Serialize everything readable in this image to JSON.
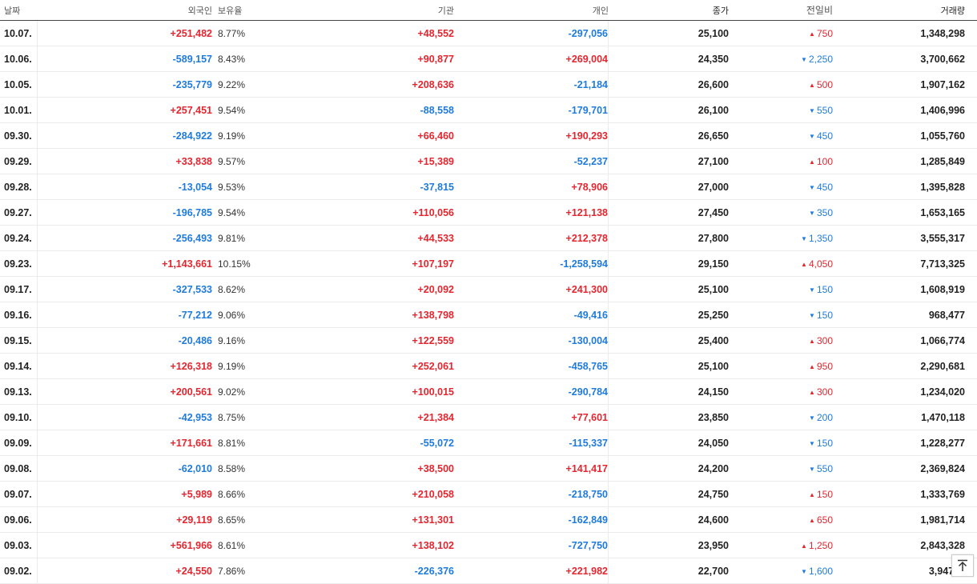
{
  "headers": {
    "date": "날짜",
    "foreign": "외국인",
    "ratio": "보유율",
    "institution": "기관",
    "individual": "개인",
    "close": "종가",
    "change": "전일비",
    "volume": "거래량"
  },
  "rows": [
    {
      "date": "10.07.",
      "foreign": "+251,482",
      "ratio": "8.77%",
      "institution": "+48,552",
      "individual": "-297,056",
      "close": "25,100",
      "change": "750",
      "change_dir": "up",
      "volume": "1,348,298"
    },
    {
      "date": "10.06.",
      "foreign": "-589,157",
      "ratio": "8.43%",
      "institution": "+90,877",
      "individual": "+269,004",
      "close": "24,350",
      "change": "2,250",
      "change_dir": "down",
      "volume": "3,700,662"
    },
    {
      "date": "10.05.",
      "foreign": "-235,779",
      "ratio": "9.22%",
      "institution": "+208,636",
      "individual": "-21,184",
      "close": "26,600",
      "change": "500",
      "change_dir": "up",
      "volume": "1,907,162"
    },
    {
      "date": "10.01.",
      "foreign": "+257,451",
      "ratio": "9.54%",
      "institution": "-88,558",
      "individual": "-179,701",
      "close": "26,100",
      "change": "550",
      "change_dir": "down",
      "volume": "1,406,996"
    },
    {
      "date": "09.30.",
      "foreign": "-284,922",
      "ratio": "9.19%",
      "institution": "+66,460",
      "individual": "+190,293",
      "close": "26,650",
      "change": "450",
      "change_dir": "down",
      "volume": "1,055,760"
    },
    {
      "date": "09.29.",
      "foreign": "+33,838",
      "ratio": "9.57%",
      "institution": "+15,389",
      "individual": "-52,237",
      "close": "27,100",
      "change": "100",
      "change_dir": "up",
      "volume": "1,285,849"
    },
    {
      "date": "09.28.",
      "foreign": "-13,054",
      "ratio": "9.53%",
      "institution": "-37,815",
      "individual": "+78,906",
      "close": "27,000",
      "change": "450",
      "change_dir": "down",
      "volume": "1,395,828"
    },
    {
      "date": "09.27.",
      "foreign": "-196,785",
      "ratio": "9.54%",
      "institution": "+110,056",
      "individual": "+121,138",
      "close": "27,450",
      "change": "350",
      "change_dir": "down",
      "volume": "1,653,165"
    },
    {
      "date": "09.24.",
      "foreign": "-256,493",
      "ratio": "9.81%",
      "institution": "+44,533",
      "individual": "+212,378",
      "close": "27,800",
      "change": "1,350",
      "change_dir": "down",
      "volume": "3,555,317"
    },
    {
      "date": "09.23.",
      "foreign": "+1,143,661",
      "ratio": "10.15%",
      "institution": "+107,197",
      "individual": "-1,258,594",
      "close": "29,150",
      "change": "4,050",
      "change_dir": "up",
      "volume": "7,713,325"
    },
    {
      "date": "09.17.",
      "foreign": "-327,533",
      "ratio": "8.62%",
      "institution": "+20,092",
      "individual": "+241,300",
      "close": "25,100",
      "change": "150",
      "change_dir": "down",
      "volume": "1,608,919"
    },
    {
      "date": "09.16.",
      "foreign": "-77,212",
      "ratio": "9.06%",
      "institution": "+138,798",
      "individual": "-49,416",
      "close": "25,250",
      "change": "150",
      "change_dir": "down",
      "volume": "968,477"
    },
    {
      "date": "09.15.",
      "foreign": "-20,486",
      "ratio": "9.16%",
      "institution": "+122,559",
      "individual": "-130,004",
      "close": "25,400",
      "change": "300",
      "change_dir": "up",
      "volume": "1,066,774"
    },
    {
      "date": "09.14.",
      "foreign": "+126,318",
      "ratio": "9.19%",
      "institution": "+252,061",
      "individual": "-458,765",
      "close": "25,100",
      "change": "950",
      "change_dir": "up",
      "volume": "2,290,681"
    },
    {
      "date": "09.13.",
      "foreign": "+200,561",
      "ratio": "9.02%",
      "institution": "+100,015",
      "individual": "-290,784",
      "close": "24,150",
      "change": "300",
      "change_dir": "up",
      "volume": "1,234,020"
    },
    {
      "date": "09.10.",
      "foreign": "-42,953",
      "ratio": "8.75%",
      "institution": "+21,384",
      "individual": "+77,601",
      "close": "23,850",
      "change": "200",
      "change_dir": "down",
      "volume": "1,470,118"
    },
    {
      "date": "09.09.",
      "foreign": "+171,661",
      "ratio": "8.81%",
      "institution": "-55,072",
      "individual": "-115,337",
      "close": "24,050",
      "change": "150",
      "change_dir": "down",
      "volume": "1,228,277"
    },
    {
      "date": "09.08.",
      "foreign": "-62,010",
      "ratio": "8.58%",
      "institution": "+38,500",
      "individual": "+141,417",
      "close": "24,200",
      "change": "550",
      "change_dir": "down",
      "volume": "2,369,824"
    },
    {
      "date": "09.07.",
      "foreign": "+5,989",
      "ratio": "8.66%",
      "institution": "+210,058",
      "individual": "-218,750",
      "close": "24,750",
      "change": "150",
      "change_dir": "up",
      "volume": "1,333,769"
    },
    {
      "date": "09.06.",
      "foreign": "+29,119",
      "ratio": "8.65%",
      "institution": "+131,301",
      "individual": "-162,849",
      "close": "24,600",
      "change": "650",
      "change_dir": "up",
      "volume": "1,981,714"
    },
    {
      "date": "09.03.",
      "foreign": "+561,966",
      "ratio": "8.61%",
      "institution": "+138,102",
      "individual": "-727,750",
      "close": "23,950",
      "change": "1,250",
      "change_dir": "up",
      "volume": "2,843,328"
    },
    {
      "date": "09.02.",
      "foreign": "+24,550",
      "ratio": "7.86%",
      "institution": "-226,376",
      "individual": "+221,982",
      "close": "22,700",
      "change": "1,600",
      "change_dir": "down",
      "volume": "3,947,..."
    }
  ],
  "colors": {
    "up": "#e3262f",
    "down": "#1f7bdb"
  },
  "scroll_top_icon": "arrow-up-to-top-icon"
}
